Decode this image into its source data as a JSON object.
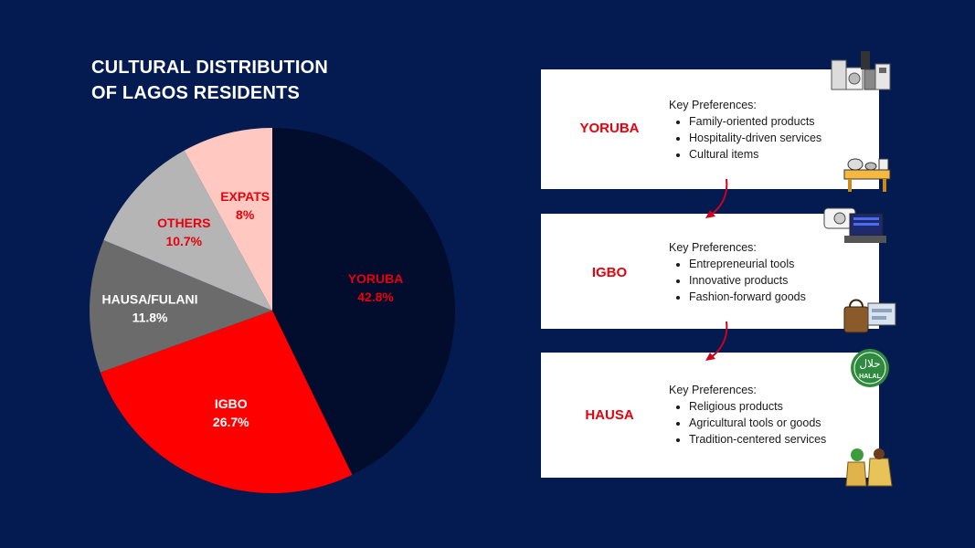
{
  "title": {
    "line1": "CULTURAL DISTRIBUTION",
    "line2": "OF LAGOS RESIDENTS"
  },
  "chart_data": {
    "type": "pie",
    "title": "CULTURAL DISTRIBUTION OF LAGOS RESIDENTS",
    "slices": [
      {
        "label": "YORUBA",
        "value": 42.8,
        "display": "42.8%",
        "color": "#020d2e",
        "label_color": "#e8000d"
      },
      {
        "label": "IGBO",
        "value": 26.7,
        "display": "26.7%",
        "color": "#ff0000",
        "label_color": "#ffffff"
      },
      {
        "label": "HAUSA/FULANI",
        "value": 11.8,
        "display": "11.8%",
        "color": "#6b6b6b",
        "label_color": "#ffffff"
      },
      {
        "label": "OTHERS",
        "value": 10.7,
        "display": "10.7%",
        "color": "#b5b5b5",
        "label_color": "#e8000d"
      },
      {
        "label": "EXPATS",
        "value": 8,
        "display": "8%",
        "color": "#ffc9c2",
        "label_color": "#e8000d"
      }
    ]
  },
  "cards": [
    {
      "group": "YORUBA",
      "heading": "Key Preferences:",
      "items": [
        "Family-oriented products",
        "Hospitality-driven services",
        "Cultural items"
      ]
    },
    {
      "group": "IGBO",
      "heading": "Key Preferences:",
      "items": [
        "Entrepreneurial tools",
        "Innovative products",
        "Fashion-forward goods"
      ]
    },
    {
      "group": "HAUSA",
      "heading": "Key Preferences:",
      "items": [
        "Religious products",
        "Agricultural tools or goods",
        "Tradition-centered services"
      ]
    }
  ],
  "halal_badge": {
    "arabic": "حلال",
    "text": "HALAL"
  },
  "colors": {
    "background": "#041b52",
    "accent": "#e8000d",
    "arrow": "#d0021b"
  }
}
